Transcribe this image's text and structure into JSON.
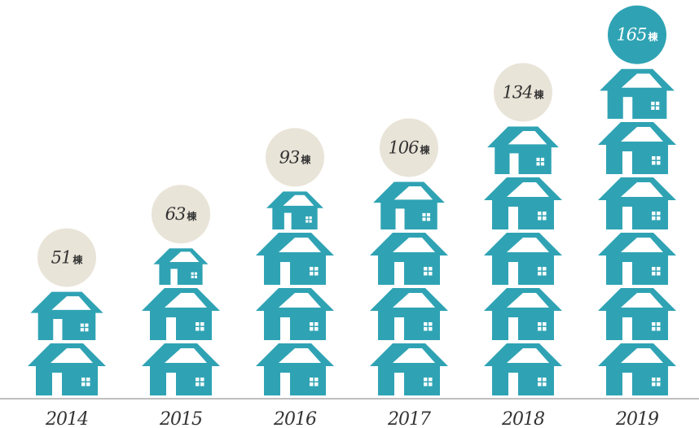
{
  "chart_data": {
    "type": "bar",
    "categories": [
      "2014",
      "2015",
      "2016",
      "2017",
      "2018",
      "2019"
    ],
    "values": [
      51,
      63,
      93,
      106,
      134,
      165
    ],
    "unit": "棟",
    "title": "",
    "xlabel": "",
    "ylabel": "",
    "colors": {
      "house": "#2fa3b4",
      "badge": "#e9e4d8",
      "badge_highlight": "#2fa3b4",
      "baseline": "#bfbfbf"
    }
  }
}
